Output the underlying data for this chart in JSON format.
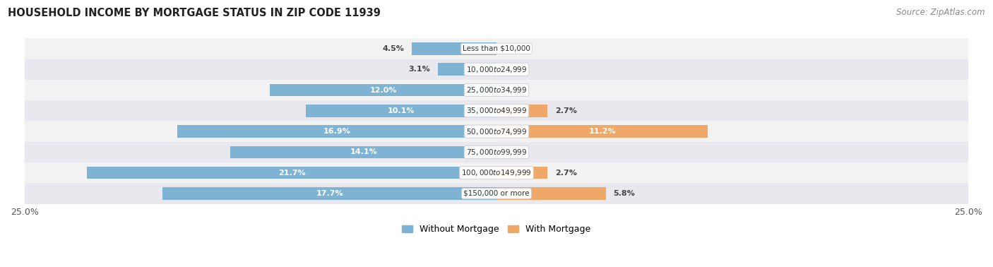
{
  "title": "HOUSEHOLD INCOME BY MORTGAGE STATUS IN ZIP CODE 11939",
  "source": "Source: ZipAtlas.com",
  "categories": [
    "Less than $10,000",
    "$10,000 to $24,999",
    "$25,000 to $34,999",
    "$35,000 to $49,999",
    "$50,000 to $74,999",
    "$75,000 to $99,999",
    "$100,000 to $149,999",
    "$150,000 or more"
  ],
  "without_mortgage": [
    4.5,
    3.1,
    12.0,
    10.1,
    16.9,
    14.1,
    21.7,
    17.7
  ],
  "with_mortgage": [
    0.0,
    0.0,
    0.0,
    2.7,
    11.2,
    0.0,
    2.7,
    5.8
  ],
  "color_without": "#7fb3d3",
  "color_with": "#f0a868",
  "bg_row_light": "#f0f0f0",
  "bg_row_dark": "#e0e0e8",
  "xlim": 25.0,
  "title_fontsize": 10.5,
  "source_fontsize": 8.5,
  "label_fontsize": 8.0,
  "cat_fontsize": 7.5,
  "tick_fontsize": 9,
  "legend_fontsize": 9
}
